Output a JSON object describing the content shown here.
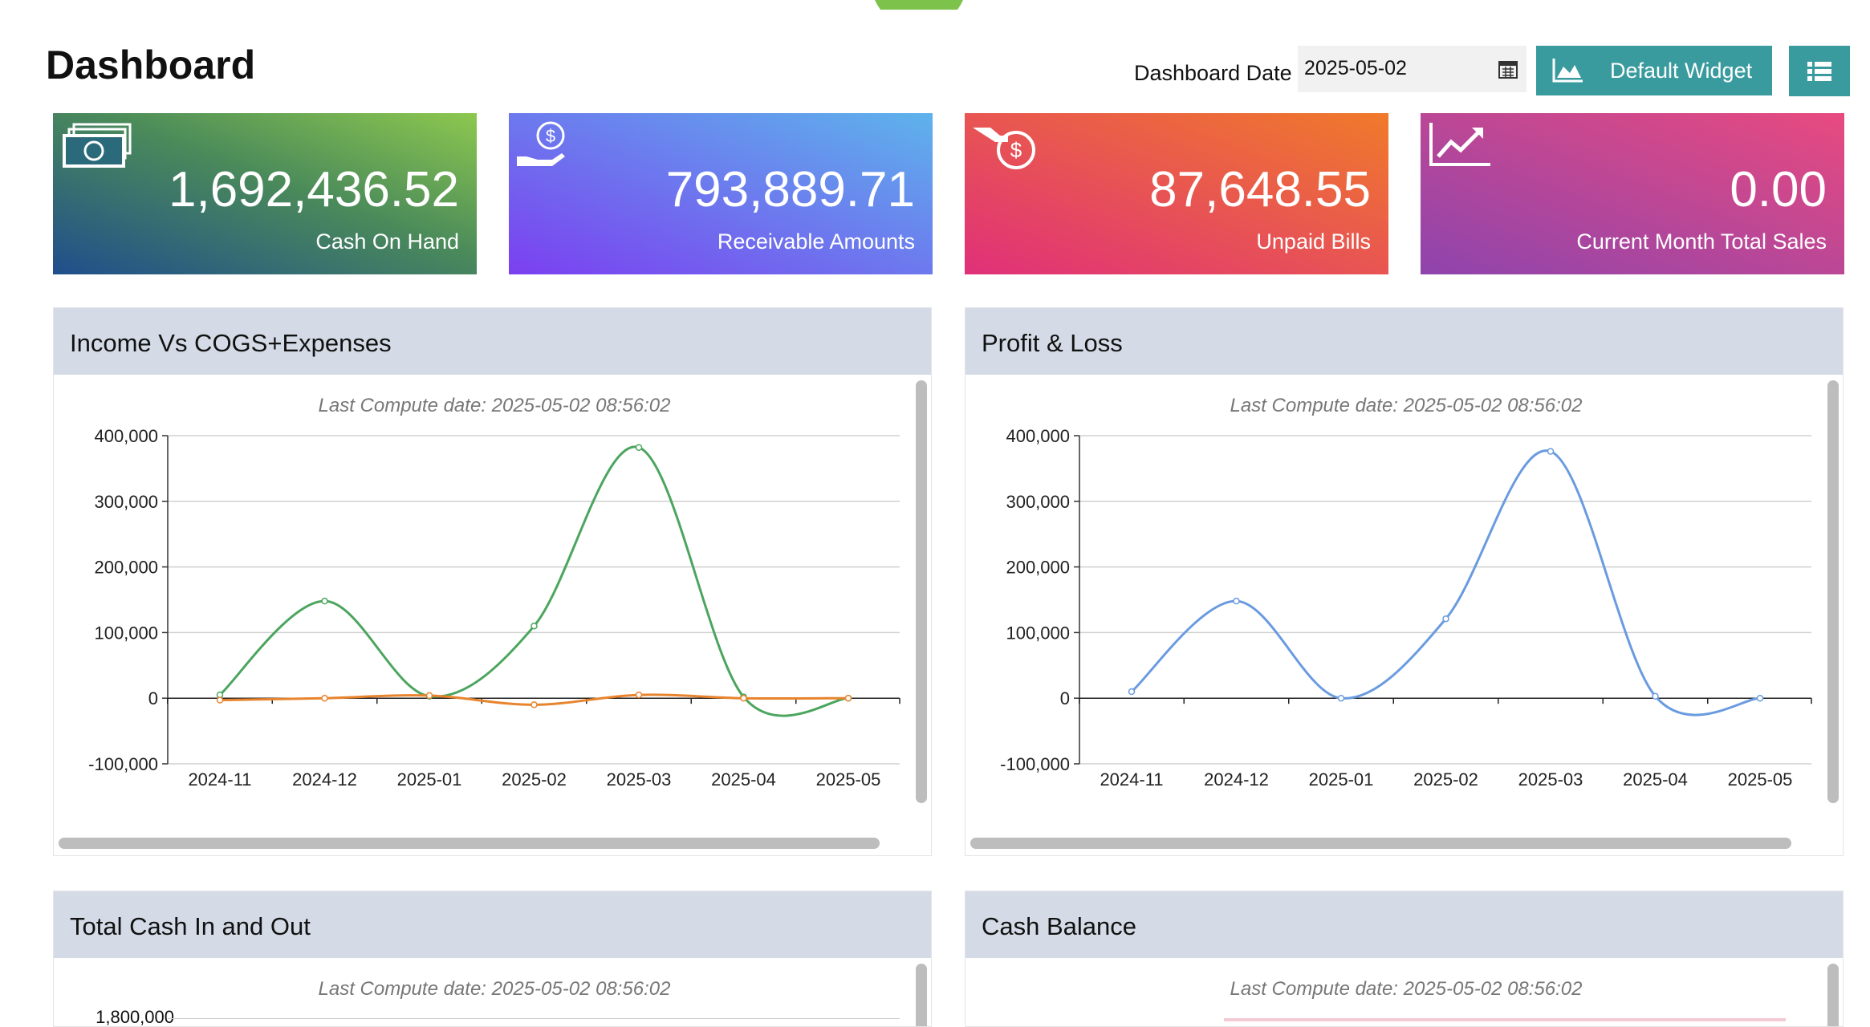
{
  "header": {
    "title": "Dashboard",
    "date_label": "Dashboard Date",
    "date_value": "2025-05-02",
    "widget_button": "Default Widget"
  },
  "cards": [
    {
      "value": "1,692,436.52",
      "label": "Cash On Hand"
    },
    {
      "value": "793,889.71",
      "label": "Receivable Amounts"
    },
    {
      "value": "87,648.55",
      "label": "Unpaid Bills"
    },
    {
      "value": "0.00",
      "label": "Current Month Total Sales"
    }
  ],
  "panels": [
    {
      "title": "Income Vs COGS+Expenses",
      "compute_date": "Last Compute date: 2025-05-02 08:56:02"
    },
    {
      "title": "Profit & Loss",
      "compute_date": "Last Compute date: 2025-05-02 08:56:02"
    },
    {
      "title": "Total Cash In and Out",
      "compute_date": "Last Compute date: 2025-05-02 08:56:02",
      "top_tick": "1,800,000"
    },
    {
      "title": "Cash Balance",
      "compute_date": "Last Compute date: 2025-05-02 08:56:02"
    }
  ],
  "chart_data": [
    {
      "type": "line",
      "categories": [
        "2024-11",
        "2024-12",
        "2025-01",
        "2025-02",
        "2025-03",
        "2025-04",
        "2025-05"
      ],
      "series": [
        {
          "color": "#4ca55e",
          "values": [
            5000,
            148000,
            3000,
            110000,
            382000,
            2000,
            0
          ]
        },
        {
          "color": "#e8842d",
          "values": [
            -3000,
            0,
            4000,
            -10000,
            5000,
            0,
            0
          ]
        }
      ],
      "ylim": [
        -100000,
        400000
      ],
      "yticks": [
        {
          "value": -100000,
          "label": "-100,000"
        },
        0,
        {
          "value": 100000,
          "label": "100,000"
        },
        {
          "value": 200000,
          "label": "200,000"
        },
        {
          "value": 300000,
          "label": "300,000"
        },
        {
          "value": 400000,
          "label": "400,000"
        }
      ],
      "grid": true
    },
    {
      "type": "line",
      "categories": [
        "2024-11",
        "2024-12",
        "2025-01",
        "2025-02",
        "2025-03",
        "2025-04",
        "2025-05"
      ],
      "series": [
        {
          "color": "#6a9be0",
          "values": [
            10000,
            148000,
            0,
            121000,
            376000,
            3000,
            0
          ]
        }
      ],
      "ylim": [
        -100000,
        400000
      ],
      "yticks": [
        {
          "value": -100000,
          "label": "-100,000"
        },
        0,
        {
          "value": 100000,
          "label": "100,000"
        },
        {
          "value": 200000,
          "label": "200,000"
        },
        {
          "value": 300000,
          "label": "300,000"
        },
        {
          "value": 400000,
          "label": "400,000"
        }
      ],
      "grid": true
    }
  ]
}
